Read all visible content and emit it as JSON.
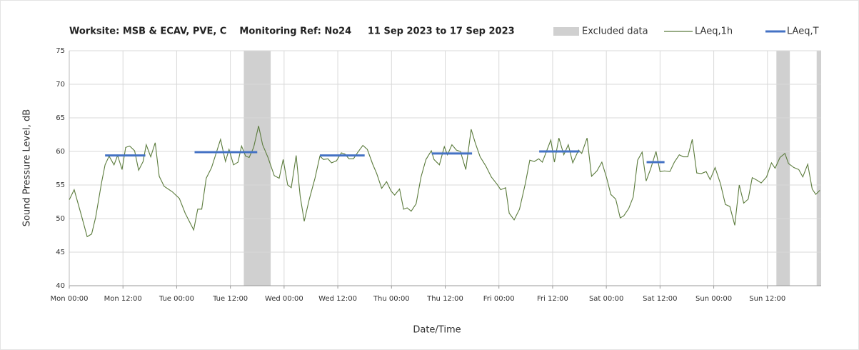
{
  "chart_data": {
    "type": "line",
    "title": "Worksite: MSB & ECAV, PVE, C    Monitoring Ref: No24     11 Sep 2023 to 17 Sep 2023",
    "xlabel": "Date/Time",
    "ylabel": "Sound Pressure Level, dB",
    "xlim": [
      0,
      168
    ],
    "xticks": [
      {
        "value": 0,
        "label": "Mon 00:00"
      },
      {
        "value": 12,
        "label": "Mon 12:00"
      },
      {
        "value": 24,
        "label": "Tue 00:00"
      },
      {
        "value": 36,
        "label": "Tue 12:00"
      },
      {
        "value": 48,
        "label": "Wed 00:00"
      },
      {
        "value": 60,
        "label": "Wed 12:00"
      },
      {
        "value": 72,
        "label": "Thu 00:00"
      },
      {
        "value": 84,
        "label": "Thu 12:00"
      },
      {
        "value": 96,
        "label": "Fri 00:00"
      },
      {
        "value": 108,
        "label": "Fri 12:00"
      },
      {
        "value": 120,
        "label": "Sat 00:00"
      },
      {
        "value": 132,
        "label": "Sat 12:00"
      },
      {
        "value": 144,
        "label": "Sun 00:00"
      },
      {
        "value": 156,
        "label": "Sun 12:00"
      }
    ],
    "ylim": [
      40,
      75
    ],
    "yticks": [
      40,
      45,
      50,
      55,
      60,
      65,
      70,
      75
    ],
    "grid": true,
    "excluded": {
      "name": "Excluded data",
      "color": "#d0d0d0",
      "ranges": [
        [
          39,
          45
        ],
        [
          158,
          161
        ],
        [
          167,
          168
        ]
      ]
    },
    "series": [
      {
        "name": "LAeq,1h",
        "color": "#5b7b3c",
        "x": [
          0,
          1.1,
          2.7,
          4,
          5,
          5.9,
          7.2,
          8,
          8.9,
          10,
          10.8,
          11.8,
          12.6,
          13.5,
          14.6,
          15.5,
          16.5,
          17.2,
          18.2,
          19.2,
          20.1,
          21.2,
          23,
          24.6,
          25.9,
          27.8,
          28.7,
          29.6,
          30.6,
          31.8,
          33.8,
          34.9,
          35.7,
          36.7,
          37.7,
          38.5,
          39.4,
          40.2,
          41.2,
          42.3,
          43.2,
          44.4,
          45.8,
          46.9,
          47.8,
          48.8,
          49.6,
          50.7,
          51.6,
          52.5,
          53.6,
          54.9,
          56,
          56.8,
          57.8,
          58.6,
          59.7,
          60.8,
          61.6,
          62.5,
          63.5,
          64.5,
          65.6,
          66.6,
          67.8,
          68.7,
          69.8,
          70.9,
          71.9,
          72.7,
          73.8,
          74.7,
          75.5,
          76.4,
          77.5,
          78.6,
          79.7,
          80.9,
          81.5,
          82.7,
          83.8,
          84.5,
          85.5,
          86.5,
          87.4,
          88.6,
          89.8,
          90.7,
          91.8,
          93.1,
          94.3,
          95.6,
          96.4,
          97.5,
          98.3,
          99.4,
          100.6,
          101.9,
          102.9,
          103.9,
          104.9,
          105.7,
          107.6,
          108.4,
          109.4,
          110.5,
          111.5,
          112.5,
          113.8,
          114.5,
          115.7,
          116.7,
          117.9,
          119,
          120.1,
          121,
          122.1,
          123.1,
          123.9,
          125,
          126,
          127,
          128,
          128.9,
          129.9,
          131.1,
          132,
          133,
          134.2,
          135.2,
          136.3,
          137.2,
          138.2,
          139.2,
          140.2,
          141.2,
          142.3,
          143.2,
          144.3,
          145.5,
          146.6,
          147.6,
          148.7,
          149.7,
          150.7,
          151.7,
          152.6,
          153.7,
          154.6,
          155.8,
          156.9,
          157.7,
          158.8,
          159.9,
          160.7,
          161.9,
          163,
          163.9,
          165,
          166,
          166.8,
          167.7
        ],
        "values": [
          52.8,
          54.3,
          50.5,
          47.3,
          47.7,
          50.2,
          55.3,
          58,
          59.3,
          58,
          59.4,
          57.3,
          60.6,
          60.8,
          60.1,
          57.2,
          58.5,
          61,
          59.2,
          61.3,
          56.3,
          54.8,
          54,
          53,
          50.8,
          48.3,
          51.4,
          51.4,
          56,
          57.6,
          61.8,
          58.5,
          60.3,
          58,
          58.4,
          60.8,
          59.3,
          59.1,
          60.6,
          63.8,
          61,
          59.1,
          56.4,
          56,
          58.8,
          55,
          54.6,
          59.4,
          53.3,
          49.6,
          52.8,
          56,
          59.3,
          58.8,
          58.9,
          58.3,
          58.6,
          59.8,
          59.6,
          58.9,
          58.9,
          59.9,
          60.9,
          60.3,
          58.1,
          56.7,
          54.5,
          55.5,
          54.1,
          53.5,
          54.4,
          51.4,
          51.6,
          51.1,
          52.2,
          56.2,
          58.8,
          60.1,
          58.8,
          58,
          60.7,
          59.5,
          61,
          60.2,
          60,
          57.3,
          63.3,
          61.3,
          59.2,
          57.8,
          56.2,
          55.1,
          54.3,
          54.6,
          50.8,
          49.8,
          51.4,
          55.2,
          58.7,
          58.5,
          58.9,
          58.4,
          61.7,
          58.4,
          62,
          59.5,
          61,
          58.3,
          60.2,
          59.7,
          62,
          56.3,
          57.1,
          58.4,
          56,
          53.6,
          52.9,
          50.1,
          50.4,
          51.5,
          53.2,
          58.7,
          59.9,
          55.6,
          57.4,
          60,
          57,
          57.1,
          57,
          58.4,
          59.5,
          59.2,
          59.2,
          61.8,
          56.8,
          56.7,
          57,
          55.8,
          57.6,
          55.2,
          52.1,
          51.8,
          49,
          55,
          52.3,
          52.9,
          56.1,
          55.7,
          55.3,
          56.2,
          58.3,
          57.5,
          59.1,
          59.7,
          58.2,
          57.6,
          57.3,
          56.2,
          58.1,
          54.4,
          53.6,
          54.2
        ]
      },
      {
        "name": "LAeq,T",
        "color": "#4472c4",
        "start": [
          8,
          28,
          56,
          81,
          105,
          129
        ],
        "end": [
          17,
          42,
          66,
          90,
          114,
          133
        ],
        "values": [
          59.4,
          59.9,
          59.4,
          59.7,
          60,
          58.4
        ]
      }
    ]
  }
}
